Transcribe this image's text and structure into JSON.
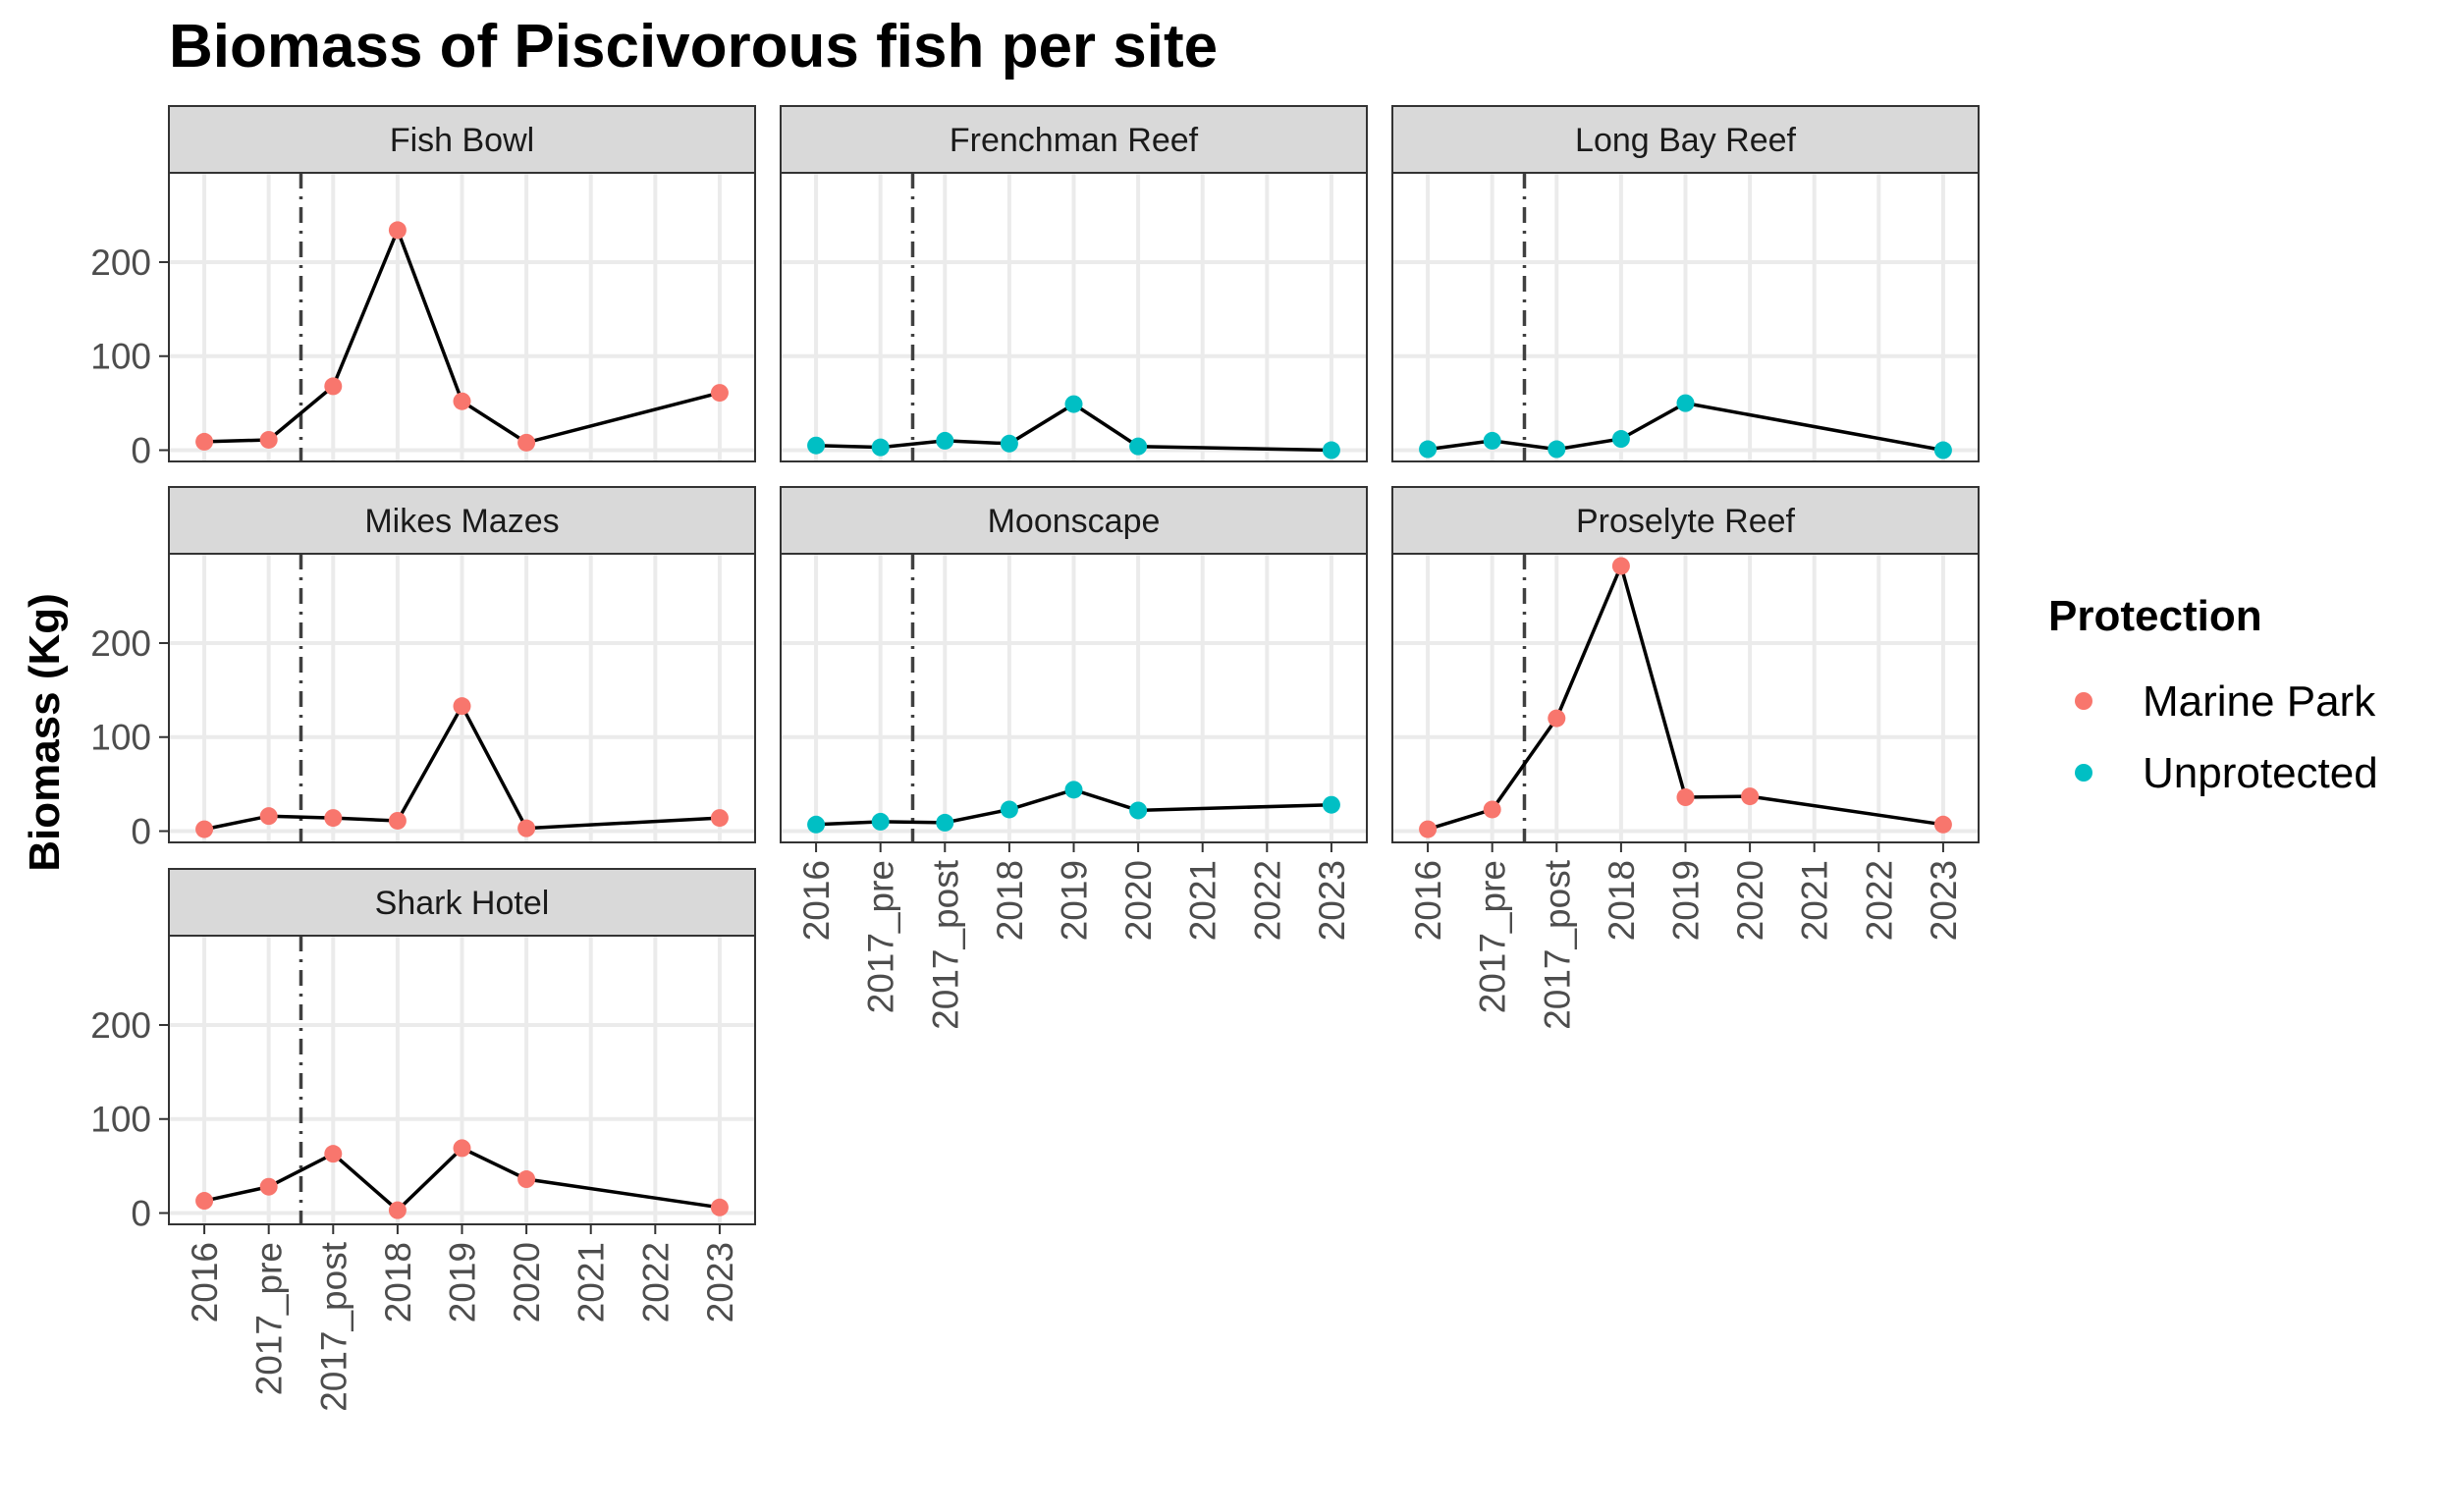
{
  "chart_data": {
    "type": "line",
    "title": "Biomass of Piscivorous fish per site",
    "xlabel": "",
    "ylabel": "Biomass (Kg)",
    "categories": [
      "2016",
      "2017_pre",
      "2017_post",
      "2018",
      "2019",
      "2020",
      "2021",
      "2022",
      "2023"
    ],
    "ylim": [
      -12,
      295
    ],
    "yticks": [
      0,
      100,
      200
    ],
    "vline_between": [
      "2017_pre",
      "2017_post"
    ],
    "grid": true,
    "legend": {
      "title": "Protection",
      "position": "right",
      "entries": [
        {
          "label": "Marine Park",
          "color": "#F8766D"
        },
        {
          "label": "Unprotected",
          "color": "#00BFC4"
        }
      ]
    },
    "panels": [
      {
        "site": "Fish Bowl",
        "protection": "Marine Park",
        "points": [
          [
            "2016",
            9
          ],
          [
            "2017_pre",
            11
          ],
          [
            "2017_post",
            68
          ],
          [
            "2018",
            234
          ],
          [
            "2019",
            52
          ],
          [
            "2020",
            8
          ],
          [
            "2023",
            61
          ]
        ]
      },
      {
        "site": "Frenchman Reef",
        "protection": "Unprotected",
        "points": [
          [
            "2016",
            5
          ],
          [
            "2017_pre",
            3
          ],
          [
            "2017_post",
            10
          ],
          [
            "2018",
            7
          ],
          [
            "2019",
            49
          ],
          [
            "2020",
            4
          ],
          [
            "2023",
            0
          ]
        ]
      },
      {
        "site": "Long Bay Reef",
        "protection": "Unprotected",
        "points": [
          [
            "2016",
            1
          ],
          [
            "2017_pre",
            10
          ],
          [
            "2017_post",
            1
          ],
          [
            "2018",
            12
          ],
          [
            "2019",
            50
          ],
          [
            "2023",
            0
          ]
        ]
      },
      {
        "site": "Mikes Mazes",
        "protection": "Marine Park",
        "points": [
          [
            "2016",
            2
          ],
          [
            "2017_pre",
            16
          ],
          [
            "2017_post",
            14
          ],
          [
            "2018",
            11
          ],
          [
            "2019",
            133
          ],
          [
            "2020",
            3
          ],
          [
            "2023",
            14
          ]
        ]
      },
      {
        "site": "Moonscape",
        "protection": "Unprotected",
        "points": [
          [
            "2016",
            7
          ],
          [
            "2017_pre",
            10
          ],
          [
            "2017_post",
            9
          ],
          [
            "2018",
            23
          ],
          [
            "2019",
            44
          ],
          [
            "2020",
            22
          ],
          [
            "2023",
            28
          ]
        ]
      },
      {
        "site": "Proselyte Reef",
        "protection": "Marine Park",
        "points": [
          [
            "2016",
            2
          ],
          [
            "2017_pre",
            23
          ],
          [
            "2017_post",
            120
          ],
          [
            "2018",
            282
          ],
          [
            "2019",
            36
          ],
          [
            "2020",
            37
          ],
          [
            "2023",
            7
          ]
        ]
      },
      {
        "site": "Shark Hotel",
        "protection": "Marine Park",
        "points": [
          [
            "2016",
            13
          ],
          [
            "2017_pre",
            28
          ],
          [
            "2017_post",
            63
          ],
          [
            "2018",
            3
          ],
          [
            "2019",
            69
          ],
          [
            "2020",
            36
          ],
          [
            "2023",
            6
          ]
        ]
      }
    ]
  }
}
